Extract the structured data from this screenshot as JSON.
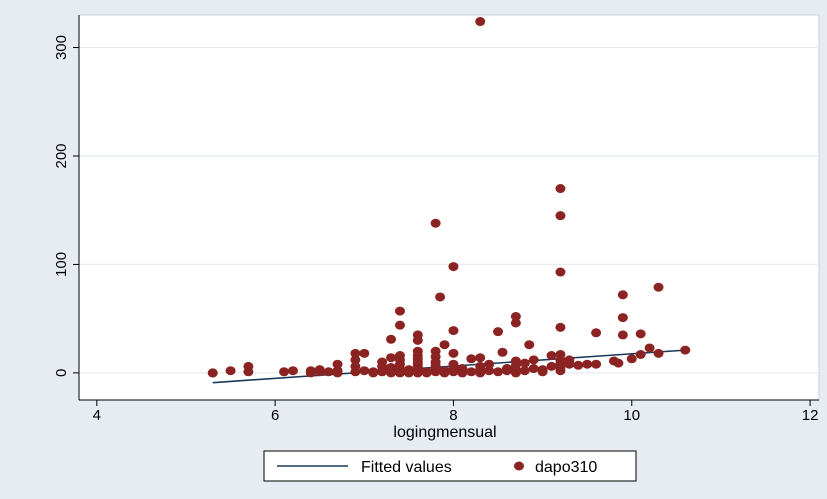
{
  "chart_data": {
    "type": "scatter",
    "title": "",
    "xlabel": "logingmensual",
    "ylabel": "",
    "xlim": [
      3.8,
      12.1
    ],
    "ylim": [
      -25,
      330
    ],
    "x_ticks": [
      "4",
      "6",
      "8",
      "10",
      "12"
    ],
    "x_tick_values": [
      4,
      6,
      8,
      10,
      12
    ],
    "y_ticks": [
      "0",
      "100",
      "200",
      "300"
    ],
    "y_tick_values": [
      0,
      100,
      200,
      300
    ],
    "grid": true,
    "legend_position": "bottom",
    "colors": {
      "background": "#e6ecf2",
      "plot_bg": "#ffffff",
      "fitted": "#1a3a5a",
      "points": "#8b2323"
    },
    "series": [
      {
        "name": "Fitted values",
        "kind": "line",
        "x": [
          5.3,
          10.6
        ],
        "y": [
          -9,
          21
        ]
      },
      {
        "name": "dapo310",
        "kind": "scatter",
        "points": [
          [
            5.3,
            0
          ],
          [
            5.3,
            0
          ],
          [
            5.5,
            2
          ],
          [
            5.7,
            6
          ],
          [
            5.7,
            1
          ],
          [
            6.1,
            1
          ],
          [
            6.2,
            2
          ],
          [
            6.4,
            2
          ],
          [
            6.4,
            0
          ],
          [
            6.5,
            3
          ],
          [
            6.5,
            1
          ],
          [
            6.6,
            1
          ],
          [
            6.7,
            0
          ],
          [
            6.7,
            8
          ],
          [
            6.7,
            2
          ],
          [
            6.9,
            18
          ],
          [
            6.9,
            12
          ],
          [
            6.9,
            6
          ],
          [
            6.9,
            1
          ],
          [
            7.0,
            18
          ],
          [
            7.0,
            2
          ],
          [
            7.1,
            0
          ],
          [
            7.1,
            1
          ],
          [
            7.2,
            10
          ],
          [
            7.2,
            6
          ],
          [
            7.2,
            2
          ],
          [
            7.2,
            1
          ],
          [
            7.3,
            1
          ],
          [
            7.3,
            0
          ],
          [
            7.4,
            0
          ],
          [
            7.4,
            3
          ],
          [
            7.3,
            31
          ],
          [
            7.3,
            14
          ],
          [
            7.3,
            5
          ],
          [
            7.4,
            57
          ],
          [
            7.4,
            44
          ],
          [
            7.4,
            16
          ],
          [
            7.4,
            12
          ],
          [
            7.4,
            8
          ],
          [
            7.4,
            4
          ],
          [
            7.4,
            2
          ],
          [
            7.5,
            1
          ],
          [
            7.5,
            0
          ],
          [
            7.5,
            3
          ],
          [
            7.6,
            35
          ],
          [
            7.6,
            30
          ],
          [
            7.6,
            20
          ],
          [
            7.6,
            16
          ],
          [
            7.6,
            13
          ],
          [
            7.6,
            10
          ],
          [
            7.6,
            8
          ],
          [
            7.6,
            6
          ],
          [
            7.6,
            4
          ],
          [
            7.6,
            2
          ],
          [
            7.6,
            0
          ],
          [
            7.7,
            0
          ],
          [
            7.7,
            1
          ],
          [
            7.8,
            138
          ],
          [
            7.8,
            20
          ],
          [
            7.8,
            15
          ],
          [
            7.8,
            10
          ],
          [
            7.8,
            7
          ],
          [
            7.8,
            5
          ],
          [
            7.8,
            3
          ],
          [
            7.8,
            1
          ],
          [
            7.85,
            70
          ],
          [
            7.9,
            26
          ],
          [
            7.9,
            2
          ],
          [
            7.9,
            0
          ],
          [
            8.0,
            98
          ],
          [
            8.0,
            39
          ],
          [
            8.0,
            18
          ],
          [
            8.0,
            8
          ],
          [
            8.0,
            4
          ],
          [
            8.0,
            1
          ],
          [
            8.1,
            0
          ],
          [
            8.1,
            2
          ],
          [
            8.1,
            4
          ],
          [
            8.2,
            13
          ],
          [
            8.2,
            1
          ],
          [
            8.3,
            324
          ],
          [
            8.3,
            14
          ],
          [
            8.3,
            6
          ],
          [
            8.3,
            3
          ],
          [
            8.3,
            0
          ],
          [
            8.4,
            2
          ],
          [
            8.4,
            8
          ],
          [
            8.5,
            1
          ],
          [
            8.5,
            38
          ],
          [
            8.55,
            19
          ],
          [
            8.6,
            4
          ],
          [
            8.6,
            2
          ],
          [
            8.7,
            52
          ],
          [
            8.7,
            46
          ],
          [
            8.7,
            11
          ],
          [
            8.7,
            7
          ],
          [
            8.7,
            3
          ],
          [
            8.7,
            0
          ],
          [
            8.8,
            2
          ],
          [
            8.8,
            9
          ],
          [
            8.85,
            26
          ],
          [
            8.9,
            4
          ],
          [
            8.9,
            12
          ],
          [
            9.0,
            3
          ],
          [
            9.0,
            1
          ],
          [
            9.1,
            16
          ],
          [
            9.1,
            6
          ],
          [
            9.2,
            170
          ],
          [
            9.2,
            145
          ],
          [
            9.2,
            93
          ],
          [
            9.2,
            42
          ],
          [
            9.2,
            17
          ],
          [
            9.2,
            12
          ],
          [
            9.2,
            9
          ],
          [
            9.2,
            5
          ],
          [
            9.2,
            2
          ],
          [
            9.3,
            12
          ],
          [
            9.3,
            8
          ],
          [
            9.4,
            7
          ],
          [
            9.5,
            8
          ],
          [
            9.6,
            37
          ],
          [
            9.6,
            8
          ],
          [
            9.8,
            11
          ],
          [
            9.85,
            9
          ],
          [
            9.9,
            72
          ],
          [
            9.9,
            51
          ],
          [
            9.9,
            35
          ],
          [
            10.0,
            13
          ],
          [
            10.1,
            36
          ],
          [
            10.1,
            17
          ],
          [
            10.2,
            23
          ],
          [
            10.3,
            79
          ],
          [
            10.3,
            18
          ],
          [
            10.6,
            21
          ]
        ]
      }
    ]
  }
}
